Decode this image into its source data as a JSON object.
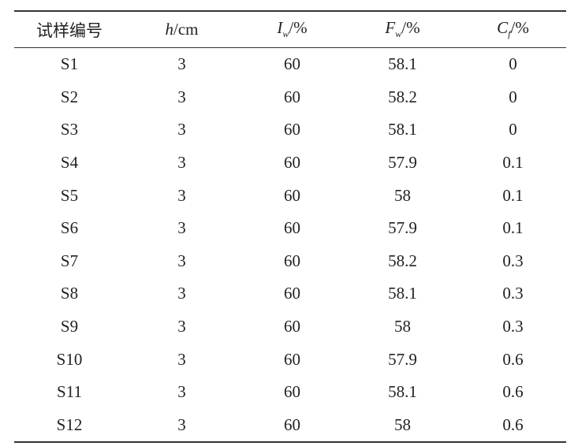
{
  "table": {
    "headers": [
      {
        "text": "试样编号"
      },
      {
        "symbol": "h",
        "unit": "/cm"
      },
      {
        "symbol": "I",
        "subscript": "w",
        "unit": "/%"
      },
      {
        "symbol": "F",
        "subscript": "w",
        "unit": "/%"
      },
      {
        "symbol": "C",
        "subscript": "f",
        "unit": "/%"
      }
    ],
    "rows": [
      [
        "S1",
        3,
        60,
        58.1,
        0
      ],
      [
        "S2",
        3,
        60,
        58.2,
        0
      ],
      [
        "S3",
        3,
        60,
        58.1,
        0
      ],
      [
        "S4",
        3,
        60,
        57.9,
        0.1
      ],
      [
        "S5",
        3,
        60,
        58,
        0.1
      ],
      [
        "S6",
        3,
        60,
        57.9,
        0.1
      ],
      [
        "S7",
        3,
        60,
        58.2,
        0.3
      ],
      [
        "S8",
        3,
        60,
        58.1,
        0.3
      ],
      [
        "S9",
        3,
        60,
        58,
        0.3
      ],
      [
        "S10",
        3,
        60,
        57.9,
        0.6
      ],
      [
        "S11",
        3,
        60,
        58.1,
        0.6
      ],
      [
        "S12",
        3,
        60,
        58,
        0.6
      ]
    ]
  }
}
